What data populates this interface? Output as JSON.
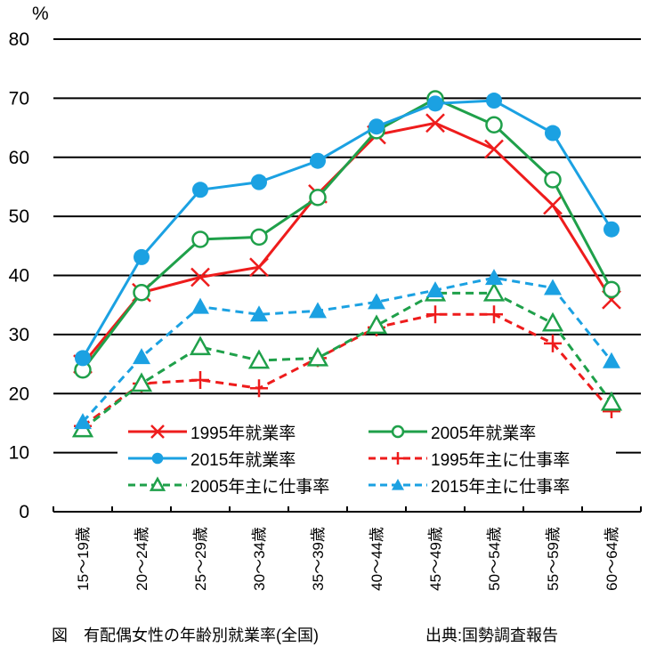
{
  "chart_data": {
    "type": "line",
    "title": "",
    "ylabel": "%",
    "xlabel": "",
    "ylim": [
      0,
      80
    ],
    "yticks": [
      0,
      10,
      20,
      30,
      40,
      50,
      60,
      70,
      80
    ],
    "grid": true,
    "legend_position": "bottom-center-inside",
    "categories": [
      "15～19歳",
      "20～24歳",
      "25～29歳",
      "30～34歳",
      "35～39歳",
      "40～44歳",
      "45～49歳",
      "50～54歳",
      "55～59歳",
      "60～64歳"
    ],
    "series": [
      {
        "name": "1995年就業率",
        "color": "#ee1c1c",
        "dash": false,
        "marker": "x",
        "values": [
          25.0,
          37.1,
          39.7,
          41.4,
          53.8,
          63.8,
          65.8,
          61.4,
          51.9,
          35.9
        ]
      },
      {
        "name": "2005年就業率",
        "color": "#1fa04a",
        "dash": false,
        "marker": "circle-open",
        "values": [
          24.0,
          37.1,
          46.1,
          46.5,
          53.2,
          64.5,
          69.9,
          65.5,
          56.2,
          37.6
        ]
      },
      {
        "name": "2015年就業率",
        "color": "#1ba1e2",
        "dash": false,
        "marker": "circle-filled",
        "values": [
          26.0,
          43.1,
          54.5,
          55.8,
          59.4,
          65.2,
          69.1,
          69.6,
          64.1,
          47.8
        ]
      },
      {
        "name": "1995年主に仕事率",
        "color": "#ee1c1c",
        "dash": true,
        "marker": "plus",
        "values": [
          14.5,
          21.7,
          22.3,
          20.9,
          26.0,
          31.2,
          33.4,
          33.4,
          28.5,
          17.0
        ]
      },
      {
        "name": "2005年主に仕事率",
        "color": "#1fa04a",
        "dash": true,
        "marker": "triangle-open",
        "values": [
          14.0,
          21.7,
          27.9,
          25.6,
          26.0,
          31.5,
          37.0,
          37.0,
          31.9,
          18.5
        ]
      },
      {
        "name": "2015年主に仕事率",
        "color": "#1ba1e2",
        "dash": true,
        "marker": "triangle-filled",
        "values": [
          15.2,
          26.2,
          34.7,
          33.4,
          34.0,
          35.5,
          37.5,
          39.6,
          37.9,
          25.5
        ]
      }
    ]
  },
  "caption": {
    "left": "図　有配偶女性の年齢別就業率(全国)",
    "right": "出典:国勢調査報告"
  }
}
